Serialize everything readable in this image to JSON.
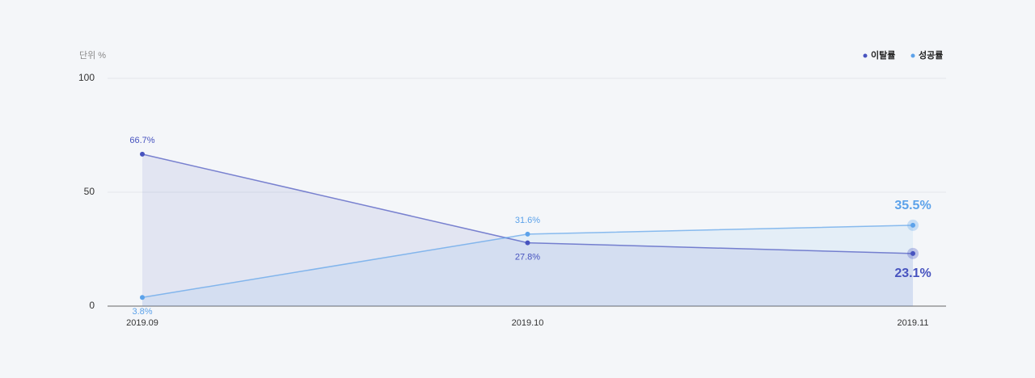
{
  "chart_data": {
    "type": "line",
    "unit_label": "단위 %",
    "categories": [
      "2019.09",
      "2019.10",
      "2019.11"
    ],
    "series": [
      {
        "name": "이탈률",
        "color": "#4753bf",
        "values": [
          66.7,
          27.8,
          23.1
        ],
        "value_labels": [
          "66.7%",
          "27.8%",
          "23.1%"
        ]
      },
      {
        "name": "성공률",
        "color": "#5ca2ea",
        "values": [
          3.8,
          31.6,
          35.5
        ],
        "value_labels": [
          "3.8%",
          "31.6%",
          "35.5%"
        ]
      }
    ],
    "ylim": [
      0,
      100
    ],
    "yticks": [
      0,
      50,
      100
    ],
    "grid": true,
    "legend": "top-right"
  }
}
